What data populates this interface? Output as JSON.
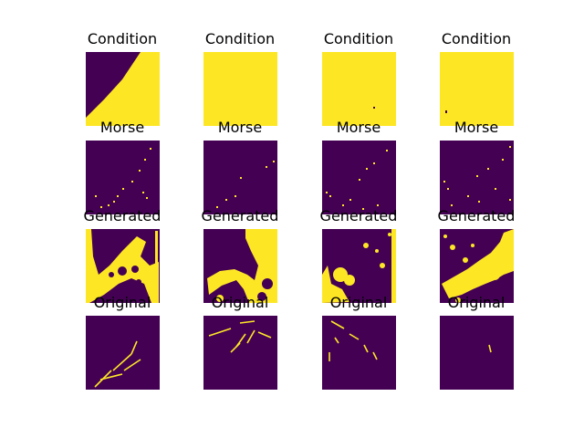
{
  "figure": {
    "colors": {
      "background": "#440154",
      "foreground": "#fde725"
    },
    "rows": [
      {
        "title": "Condition"
      },
      {
        "title": "Morse"
      },
      {
        "title": "Generated"
      },
      {
        "title": "Original"
      }
    ],
    "columns": 4
  }
}
